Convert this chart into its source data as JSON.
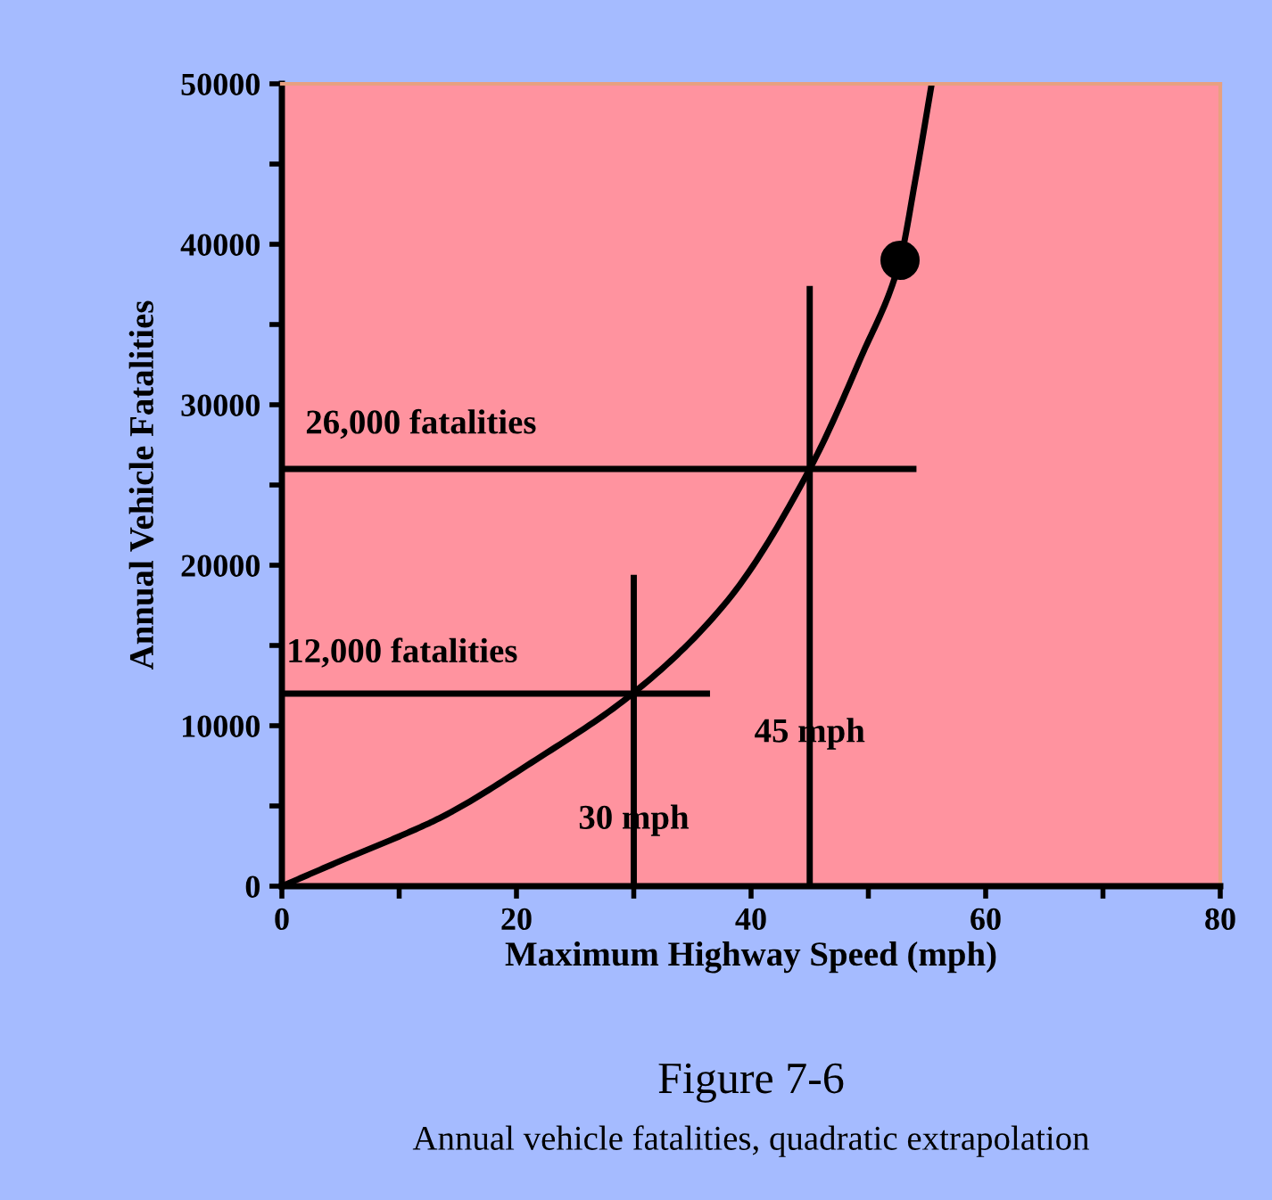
{
  "chart_data": {
    "type": "line",
    "title": "Figure 7-6",
    "subtitle": "Annual vehicle fatalities, quadratic extrapolation",
    "xlabel": "Maximum Highway Speed (mph)",
    "ylabel": "Annual Vehicle Fatalities",
    "xlim": [
      0,
      80
    ],
    "ylim": [
      0,
      50000
    ],
    "xticks": [
      0,
      {
        "value": 10,
        "label": null
      },
      20,
      {
        "value": 30,
        "label": null
      },
      40,
      {
        "value": 50,
        "label": null
      },
      60,
      {
        "value": 70,
        "label": null
      },
      80
    ],
    "yticks": [
      0,
      {
        "value": 5000,
        "label": null
      },
      10000,
      {
        "value": 15000,
        "label": null
      },
      20000,
      {
        "value": 25000,
        "label": null
      },
      30000,
      {
        "value": 35000,
        "label": null
      },
      40000,
      {
        "value": 45000,
        "label": null
      },
      50000
    ],
    "grid": false,
    "legend": false,
    "marker": "none",
    "line_style": "solid",
    "series": [
      {
        "color": "#000000",
        "x": [
          0,
          5.4,
          10,
          13.6,
          21.7,
          29.9,
          38,
          45,
          49.4,
          52.7,
          54,
          55.4
        ],
        "values": [
          0,
          1700,
          3100,
          4300,
          7900,
          12000,
          17800,
          26000,
          33000,
          39000,
          44000,
          50000
        ]
      },
      {
        "color": "#000000",
        "x": [
          0,
          36.5
        ],
        "values": [
          12000,
          12000
        ]
      },
      {
        "color": "#000000",
        "x": [
          0,
          54.1
        ],
        "values": [
          26000,
          26000
        ]
      },
      {
        "color": "#000000",
        "x": [
          30,
          30
        ],
        "values": [
          0,
          19400
        ]
      },
      {
        "color": "#000000",
        "x": [
          45,
          45
        ],
        "values": [
          0,
          37400
        ]
      },
      {
        "type": "scatter",
        "marker": "circle",
        "color": "#000000",
        "x": [
          52.7
        ],
        "values": [
          39000
        ]
      }
    ],
    "annotations": [
      "12,000 fatalities",
      "26,000 fatalities",
      {
        "text": "30 mph",
        "x": 30,
        "y": 4100
      },
      {
        "text": "45 mph",
        "x": 45,
        "y": 9500
      }
    ]
  }
}
